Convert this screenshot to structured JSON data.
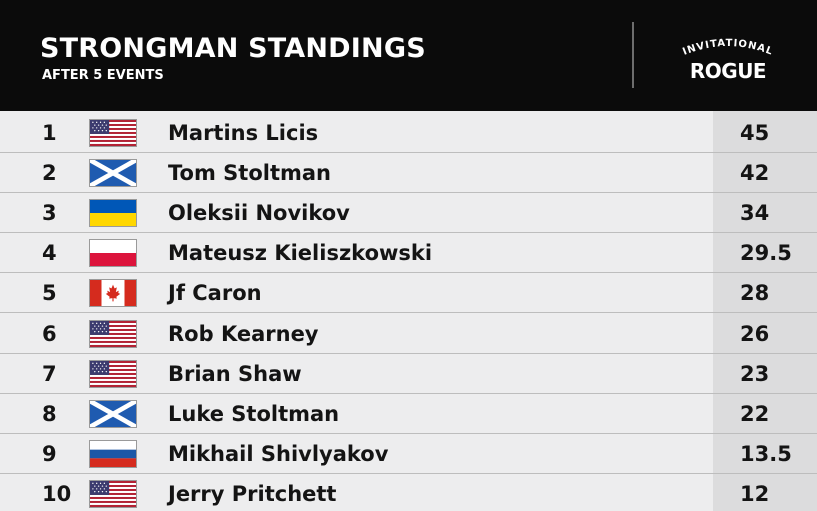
{
  "header": {
    "title": "STRONGMAN STANDINGS",
    "subtitle": "AFTER 5 EVENTS",
    "logo_top": "INVITATIONAL",
    "logo_word": "ROGUE"
  },
  "standings": [
    {
      "rank": "1",
      "flag": "usa-flag-icon",
      "name": "Martins Licis",
      "points": "45"
    },
    {
      "rank": "2",
      "flag": "scotland-flag-icon",
      "name": "Tom Stoltman",
      "points": "42"
    },
    {
      "rank": "3",
      "flag": "ukraine-flag-icon",
      "name": "Oleksii Novikov",
      "points": "34"
    },
    {
      "rank": "4",
      "flag": "poland-flag-icon",
      "name": "Mateusz Kieliszkowski",
      "points": "29.5"
    },
    {
      "rank": "5",
      "flag": "canada-flag-icon",
      "name": "Jf Caron",
      "points": "28"
    },
    {
      "rank": "6",
      "flag": "usa-flag-icon",
      "name": "Rob Kearney",
      "points": "26"
    },
    {
      "rank": "7",
      "flag": "usa-flag-icon",
      "name": "Brian Shaw",
      "points": "23"
    },
    {
      "rank": "8",
      "flag": "scotland-flag-icon",
      "name": "Luke Stoltman",
      "points": "22"
    },
    {
      "rank": "9",
      "flag": "russia-flag-icon",
      "name": "Mikhail Shivlyakov",
      "points": "13.5"
    },
    {
      "rank": "10",
      "flag": "usa-flag-icon",
      "name": "Jerry Pritchett",
      "points": "12"
    }
  ],
  "colors": {
    "header_bg": "#0b0b0b",
    "row_bg": "#ededee",
    "points_bg": "#dcdcdd",
    "text": "#141414"
  }
}
